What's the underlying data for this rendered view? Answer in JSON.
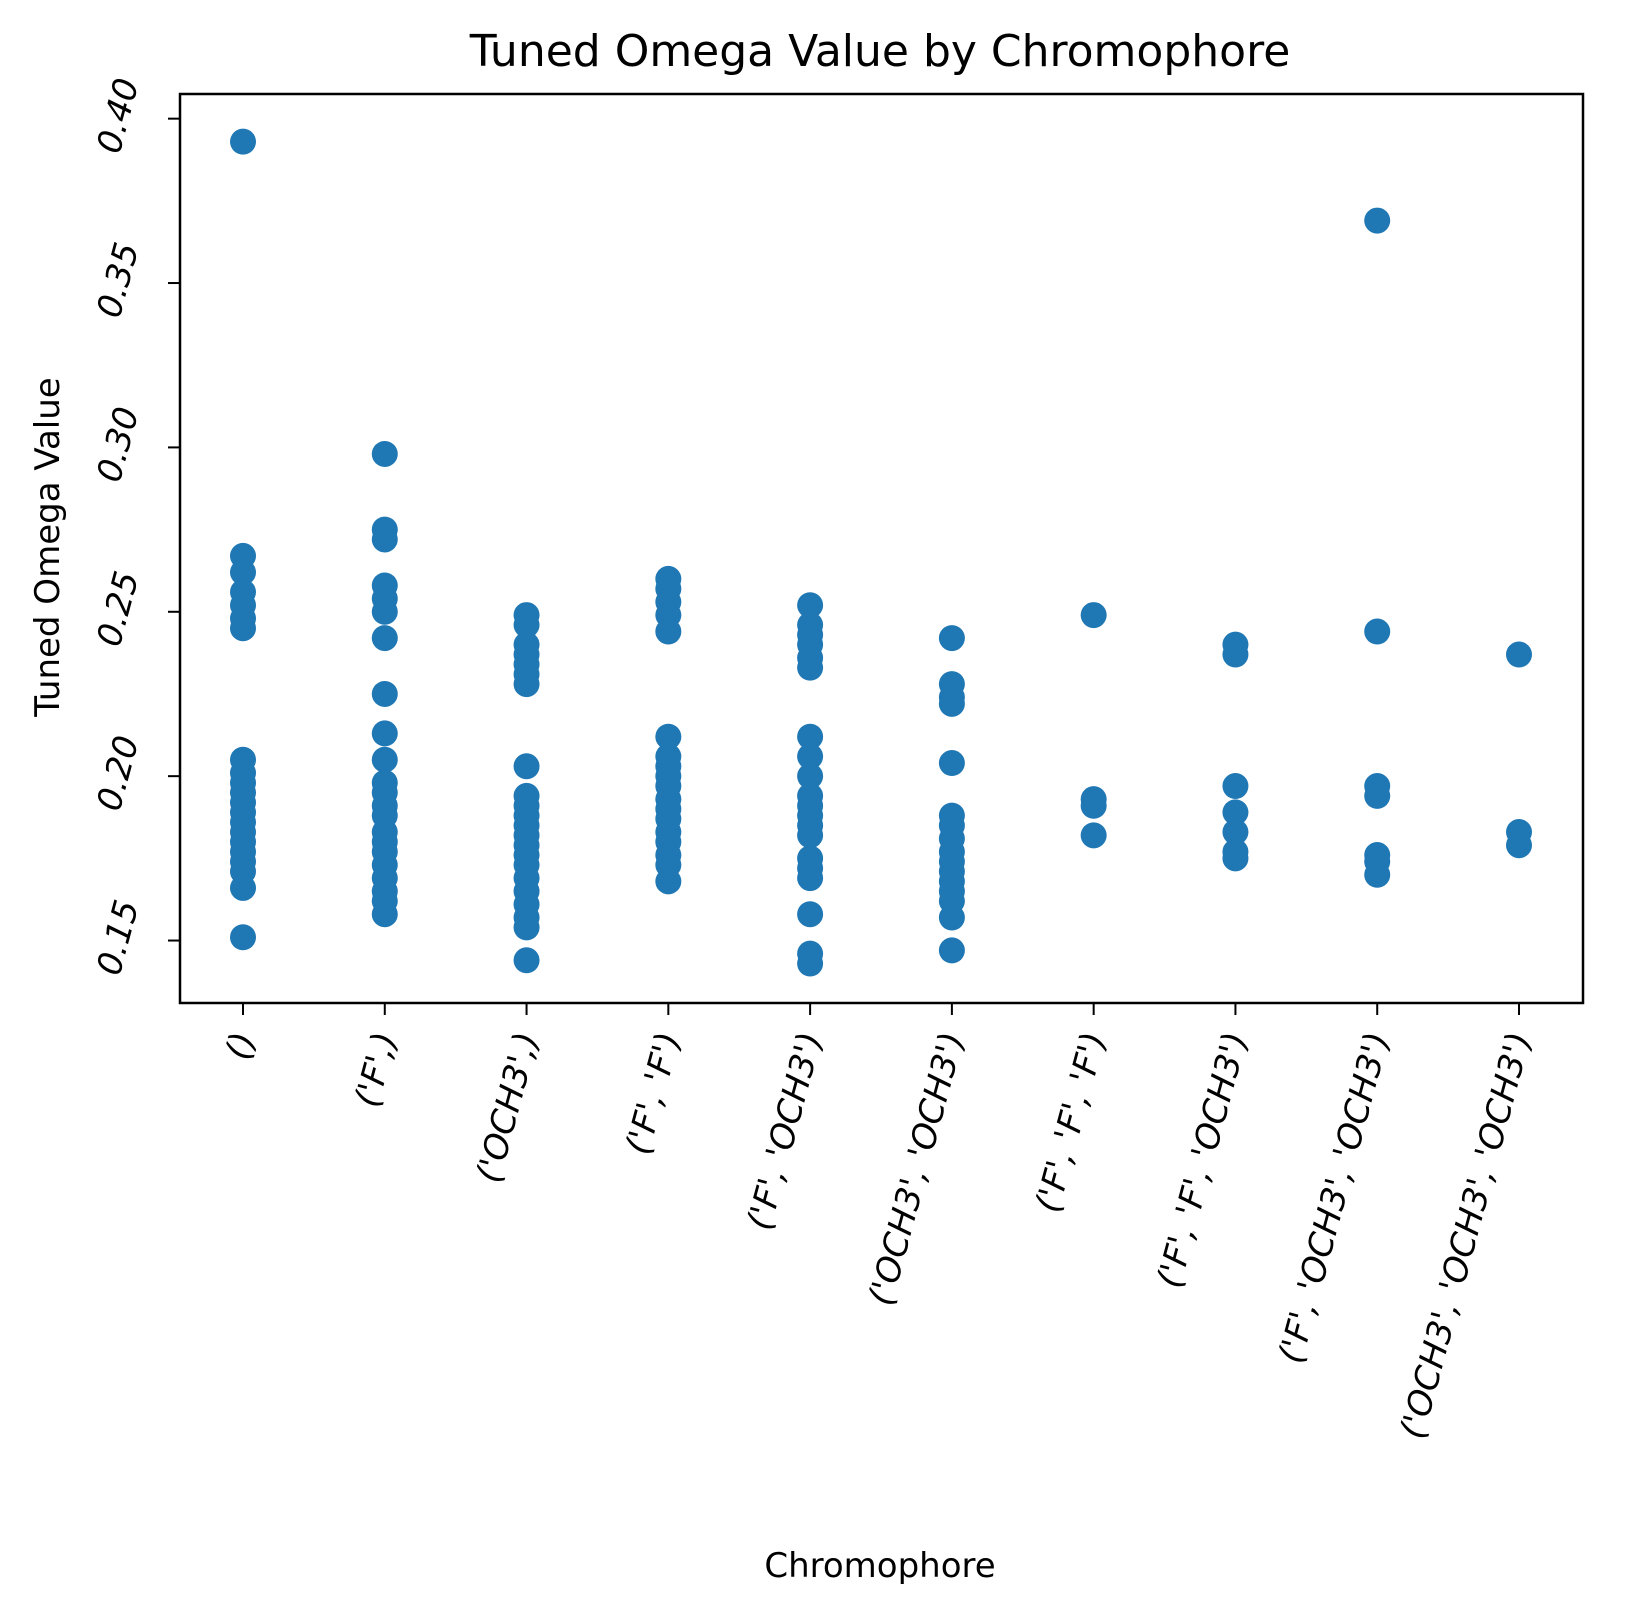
{
  "chart_data": {
    "type": "scatter",
    "title": "Tuned Omega Value by Chromophore",
    "xlabel": "Chromophore",
    "ylabel": "Tuned Omega Value",
    "ylim": [
      0.131,
      0.4075
    ],
    "yticks": [
      "0.15",
      "0.20",
      "0.25",
      "0.30",
      "0.35",
      "0.40"
    ],
    "ytick_values": [
      0.15,
      0.2,
      0.25,
      0.3,
      0.35,
      0.4
    ],
    "grid": false,
    "marker_color": "#1f77b4",
    "categories": [
      "()",
      "('F',)",
      "('OCH3',)",
      "('F', 'F')",
      "('F', 'OCH3')",
      "('OCH3', 'OCH3')",
      "('F', 'F', 'F')",
      "('F', 'F', 'OCH3')",
      "('F', 'OCH3', 'OCH3')",
      "('OCH3', 'OCH3', 'OCH3')"
    ],
    "series": [
      {
        "points": [
          {
            "x": "()",
            "y": 0.393
          },
          {
            "x": "()",
            "y": 0.267
          },
          {
            "x": "()",
            "y": 0.262
          },
          {
            "x": "()",
            "y": 0.256
          },
          {
            "x": "()",
            "y": 0.252
          },
          {
            "x": "()",
            "y": 0.248
          },
          {
            "x": "()",
            "y": 0.245
          },
          {
            "x": "()",
            "y": 0.205
          },
          {
            "x": "()",
            "y": 0.201
          },
          {
            "x": "()",
            "y": 0.198
          },
          {
            "x": "()",
            "y": 0.195
          },
          {
            "x": "()",
            "y": 0.192
          },
          {
            "x": "()",
            "y": 0.189
          },
          {
            "x": "()",
            "y": 0.186
          },
          {
            "x": "()",
            "y": 0.183
          },
          {
            "x": "()",
            "y": 0.18
          },
          {
            "x": "()",
            "y": 0.177
          },
          {
            "x": "()",
            "y": 0.174
          },
          {
            "x": "()",
            "y": 0.171
          },
          {
            "x": "()",
            "y": 0.166
          },
          {
            "x": "()",
            "y": 0.151
          },
          {
            "x": "('F',)",
            "y": 0.298
          },
          {
            "x": "('F',)",
            "y": 0.275
          },
          {
            "x": "('F',)",
            "y": 0.272
          },
          {
            "x": "('F',)",
            "y": 0.258
          },
          {
            "x": "('F',)",
            "y": 0.254
          },
          {
            "x": "('F',)",
            "y": 0.25
          },
          {
            "x": "('F',)",
            "y": 0.242
          },
          {
            "x": "('F',)",
            "y": 0.225
          },
          {
            "x": "('F',)",
            "y": 0.213
          },
          {
            "x": "('F',)",
            "y": 0.205
          },
          {
            "x": "('F',)",
            "y": 0.198
          },
          {
            "x": "('F',)",
            "y": 0.195
          },
          {
            "x": "('F',)",
            "y": 0.191
          },
          {
            "x": "('F',)",
            "y": 0.188
          },
          {
            "x": "('F',)",
            "y": 0.183
          },
          {
            "x": "('F',)",
            "y": 0.18
          },
          {
            "x": "('F',)",
            "y": 0.177
          },
          {
            "x": "('F',)",
            "y": 0.173
          },
          {
            "x": "('F',)",
            "y": 0.169
          },
          {
            "x": "('F',)",
            "y": 0.165
          },
          {
            "x": "('F',)",
            "y": 0.162
          },
          {
            "x": "('F',)",
            "y": 0.158
          },
          {
            "x": "('OCH3',)",
            "y": 0.249
          },
          {
            "x": "('OCH3',)",
            "y": 0.246
          },
          {
            "x": "('OCH3',)",
            "y": 0.24
          },
          {
            "x": "('OCH3',)",
            "y": 0.237
          },
          {
            "x": "('OCH3',)",
            "y": 0.234
          },
          {
            "x": "('OCH3',)",
            "y": 0.231
          },
          {
            "x": "('OCH3',)",
            "y": 0.228
          },
          {
            "x": "('OCH3',)",
            "y": 0.203
          },
          {
            "x": "('OCH3',)",
            "y": 0.194
          },
          {
            "x": "('OCH3',)",
            "y": 0.191
          },
          {
            "x": "('OCH3',)",
            "y": 0.188
          },
          {
            "x": "('OCH3',)",
            "y": 0.185
          },
          {
            "x": "('OCH3',)",
            "y": 0.182
          },
          {
            "x": "('OCH3',)",
            "y": 0.179
          },
          {
            "x": "('OCH3',)",
            "y": 0.176
          },
          {
            "x": "('OCH3',)",
            "y": 0.173
          },
          {
            "x": "('OCH3',)",
            "y": 0.169
          },
          {
            "x": "('OCH3',)",
            "y": 0.165
          },
          {
            "x": "('OCH3',)",
            "y": 0.161
          },
          {
            "x": "('OCH3',)",
            "y": 0.157
          },
          {
            "x": "('OCH3',)",
            "y": 0.154
          },
          {
            "x": "('OCH3',)",
            "y": 0.144
          },
          {
            "x": "('F', 'F')",
            "y": 0.26
          },
          {
            "x": "('F', 'F')",
            "y": 0.257
          },
          {
            "x": "('F', 'F')",
            "y": 0.253
          },
          {
            "x": "('F', 'F')",
            "y": 0.249
          },
          {
            "x": "('F', 'F')",
            "y": 0.244
          },
          {
            "x": "('F', 'F')",
            "y": 0.212
          },
          {
            "x": "('F', 'F')",
            "y": 0.206
          },
          {
            "x": "('F', 'F')",
            "y": 0.203
          },
          {
            "x": "('F', 'F')",
            "y": 0.2
          },
          {
            "x": "('F', 'F')",
            "y": 0.197
          },
          {
            "x": "('F', 'F')",
            "y": 0.193
          },
          {
            "x": "('F', 'F')",
            "y": 0.19
          },
          {
            "x": "('F', 'F')",
            "y": 0.187
          },
          {
            "x": "('F', 'F')",
            "y": 0.183
          },
          {
            "x": "('F', 'F')",
            "y": 0.18
          },
          {
            "x": "('F', 'F')",
            "y": 0.176
          },
          {
            "x": "('F', 'F')",
            "y": 0.173
          },
          {
            "x": "('F', 'F')",
            "y": 0.168
          },
          {
            "x": "('F', 'OCH3')",
            "y": 0.252
          },
          {
            "x": "('F', 'OCH3')",
            "y": 0.246
          },
          {
            "x": "('F', 'OCH3')",
            "y": 0.243
          },
          {
            "x": "('F', 'OCH3')",
            "y": 0.24
          },
          {
            "x": "('F', 'OCH3')",
            "y": 0.236
          },
          {
            "x": "('F', 'OCH3')",
            "y": 0.233
          },
          {
            "x": "('F', 'OCH3')",
            "y": 0.212
          },
          {
            "x": "('F', 'OCH3')",
            "y": 0.206
          },
          {
            "x": "('F', 'OCH3')",
            "y": 0.2
          },
          {
            "x": "('F', 'OCH3')",
            "y": 0.194
          },
          {
            "x": "('F', 'OCH3')",
            "y": 0.191
          },
          {
            "x": "('F', 'OCH3')",
            "y": 0.188
          },
          {
            "x": "('F', 'OCH3')",
            "y": 0.185
          },
          {
            "x": "('F', 'OCH3')",
            "y": 0.182
          },
          {
            "x": "('F', 'OCH3')",
            "y": 0.175
          },
          {
            "x": "('F', 'OCH3')",
            "y": 0.172
          },
          {
            "x": "('F', 'OCH3')",
            "y": 0.169
          },
          {
            "x": "('F', 'OCH3')",
            "y": 0.158
          },
          {
            "x": "('F', 'OCH3')",
            "y": 0.146
          },
          {
            "x": "('F', 'OCH3')",
            "y": 0.143
          },
          {
            "x": "('OCH3', 'OCH3')",
            "y": 0.242
          },
          {
            "x": "('OCH3', 'OCH3')",
            "y": 0.228
          },
          {
            "x": "('OCH3', 'OCH3')",
            "y": 0.224
          },
          {
            "x": "('OCH3', 'OCH3')",
            "y": 0.222
          },
          {
            "x": "('OCH3', 'OCH3')",
            "y": 0.204
          },
          {
            "x": "('OCH3', 'OCH3')",
            "y": 0.188
          },
          {
            "x": "('OCH3', 'OCH3')",
            "y": 0.185
          },
          {
            "x": "('OCH3', 'OCH3')",
            "y": 0.181
          },
          {
            "x": "('OCH3', 'OCH3')",
            "y": 0.177
          },
          {
            "x": "('OCH3', 'OCH3')",
            "y": 0.174
          },
          {
            "x": "('OCH3', 'OCH3')",
            "y": 0.171
          },
          {
            "x": "('OCH3', 'OCH3')",
            "y": 0.168
          },
          {
            "x": "('OCH3', 'OCH3')",
            "y": 0.165
          },
          {
            "x": "('OCH3', 'OCH3')",
            "y": 0.162
          },
          {
            "x": "('OCH3', 'OCH3')",
            "y": 0.157
          },
          {
            "x": "('OCH3', 'OCH3')",
            "y": 0.147
          },
          {
            "x": "('F', 'F', 'F')",
            "y": 0.249
          },
          {
            "x": "('F', 'F', 'F')",
            "y": 0.193
          },
          {
            "x": "('F', 'F', 'F')",
            "y": 0.191
          },
          {
            "x": "('F', 'F', 'F')",
            "y": 0.182
          },
          {
            "x": "('F', 'F', 'OCH3')",
            "y": 0.24
          },
          {
            "x": "('F', 'F', 'OCH3')",
            "y": 0.237
          },
          {
            "x": "('F', 'F', 'OCH3')",
            "y": 0.197
          },
          {
            "x": "('F', 'F', 'OCH3')",
            "y": 0.189
          },
          {
            "x": "('F', 'F', 'OCH3')",
            "y": 0.183
          },
          {
            "x": "('F', 'F', 'OCH3')",
            "y": 0.177
          },
          {
            "x": "('F', 'F', 'OCH3')",
            "y": 0.175
          },
          {
            "x": "('F', 'OCH3', 'OCH3')",
            "y": 0.369
          },
          {
            "x": "('F', 'OCH3', 'OCH3')",
            "y": 0.244
          },
          {
            "x": "('F', 'OCH3', 'OCH3')",
            "y": 0.197
          },
          {
            "x": "('F', 'OCH3', 'OCH3')",
            "y": 0.194
          },
          {
            "x": "('F', 'OCH3', 'OCH3')",
            "y": 0.176
          },
          {
            "x": "('F', 'OCH3', 'OCH3')",
            "y": 0.174
          },
          {
            "x": "('F', 'OCH3', 'OCH3')",
            "y": 0.17
          },
          {
            "x": "('OCH3', 'OCH3', 'OCH3')",
            "y": 0.237
          },
          {
            "x": "('OCH3', 'OCH3', 'OCH3')",
            "y": 0.183
          },
          {
            "x": "('OCH3', 'OCH3', 'OCH3')",
            "y": 0.179
          }
        ]
      }
    ]
  }
}
